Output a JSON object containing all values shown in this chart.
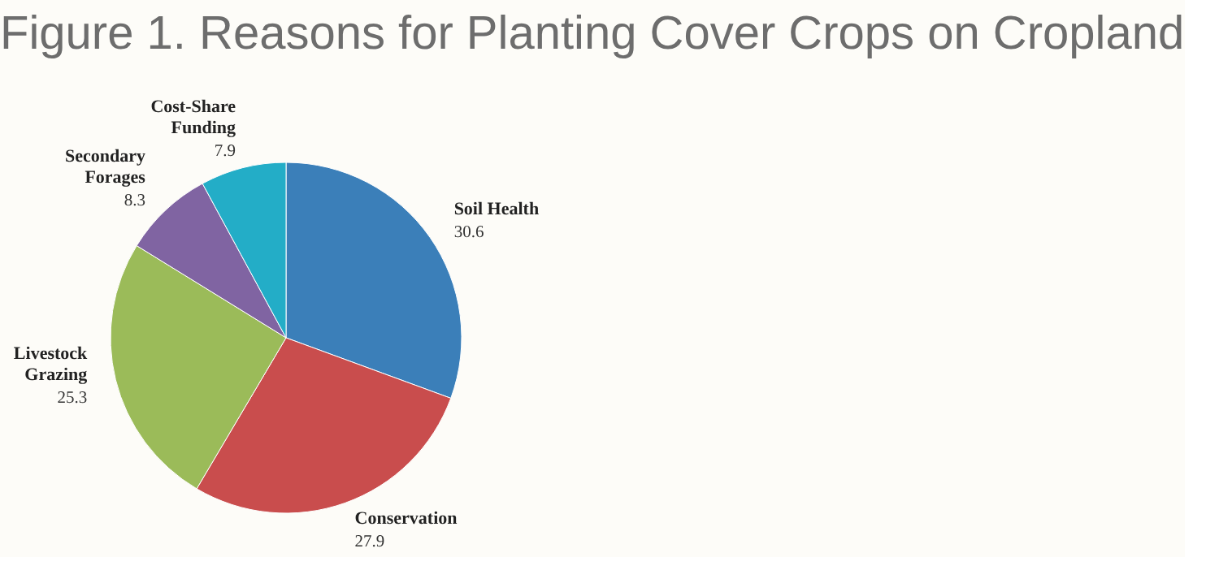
{
  "chart_data": {
    "type": "pie",
    "title": "Figure 1. Reasons for Planting Cover Crops on Cropland",
    "categories": [
      "Soil Health",
      "Conservation",
      "Livestock Grazing",
      "Secondary Forages",
      "Cost-Share Funding"
    ],
    "values": [
      30.6,
      27.9,
      25.3,
      8.3,
      7.9
    ],
    "colors": [
      "#3b7fb9",
      "#c94d4d",
      "#9bbb59",
      "#8064a2",
      "#23adc7"
    ],
    "data_labels": true,
    "legend": false
  }
}
